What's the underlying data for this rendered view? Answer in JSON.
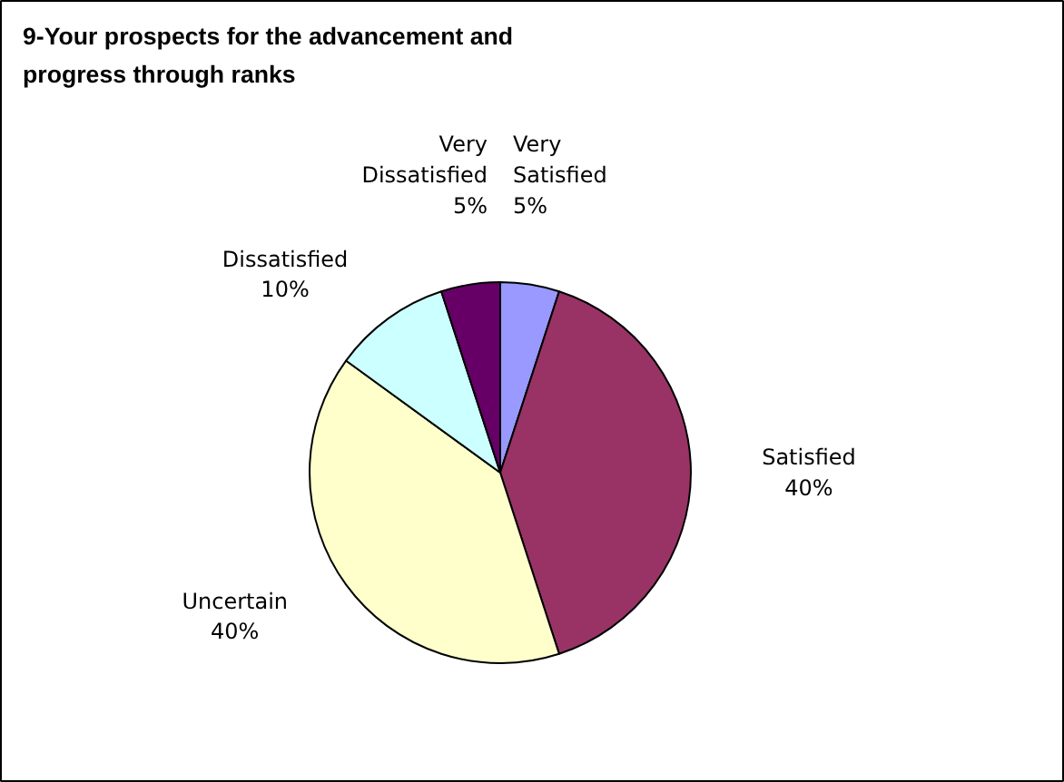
{
  "chart_data": {
    "type": "pie",
    "title": "9-Your prospects for the advancement and progress through ranks",
    "categories": [
      "Very Satisfied",
      "Satisfied",
      "Uncertain",
      "Dissatisfied",
      "Very Dissatisfied"
    ],
    "values": [
      5,
      40,
      40,
      10,
      5
    ],
    "value_labels": [
      "5%",
      "40%",
      "40%",
      "10%",
      "5%"
    ],
    "colors": [
      "#9999ff",
      "#993366",
      "#ffffcc",
      "#ccffff",
      "#660066"
    ]
  }
}
